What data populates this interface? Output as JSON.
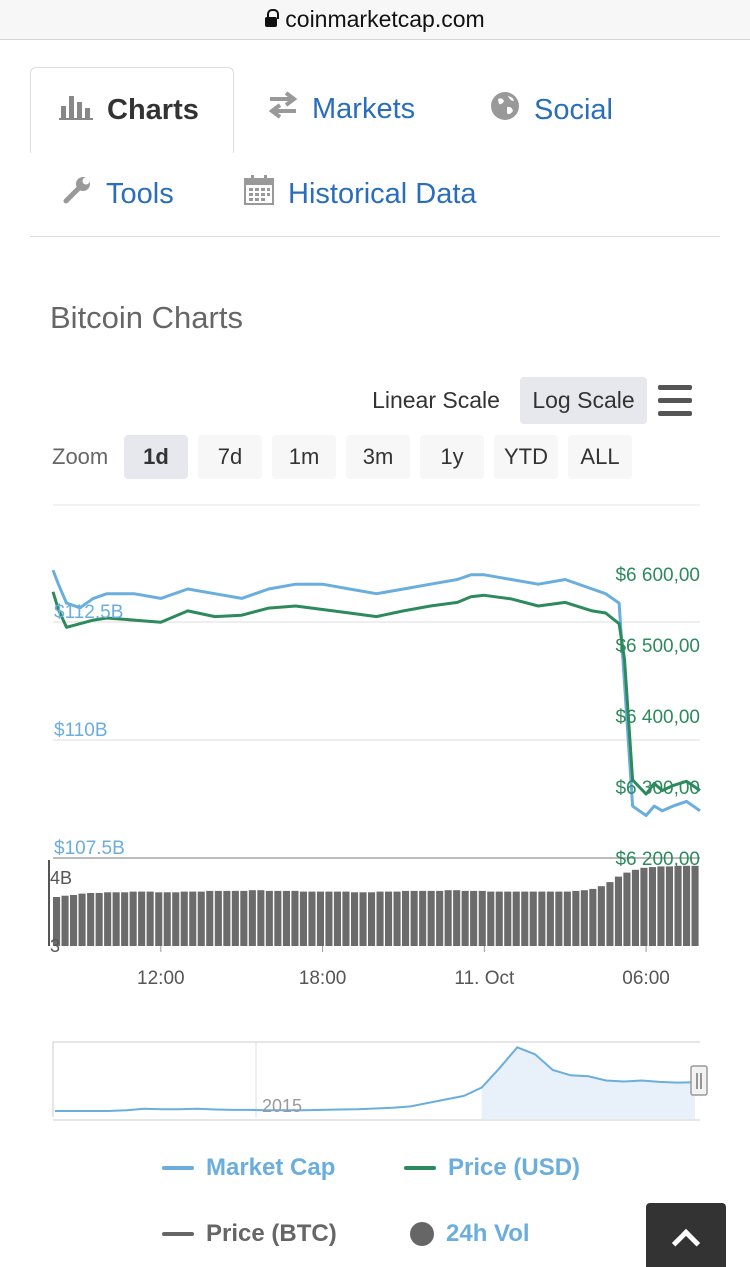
{
  "browser": {
    "url": "coinmarketcap.com"
  },
  "tabs": {
    "charts": "Charts",
    "markets": "Markets",
    "social": "Social",
    "tools": "Tools",
    "historical": "Historical Data"
  },
  "section_title": "Bitcoin Charts",
  "scale": {
    "linear": "Linear Scale",
    "log": "Log Scale",
    "selected": "Log Scale"
  },
  "zoom": {
    "label": "Zoom",
    "options": [
      "1d",
      "7d",
      "1m",
      "3m",
      "1y",
      "YTD",
      "ALL"
    ],
    "selected": "1d"
  },
  "chart_data": [
    {
      "type": "line",
      "colors": {
        "market_cap": "#6aaede",
        "price_usd": "#2d8a5c"
      },
      "y_left": {
        "ticks": [
          "$112.5B",
          "$110B",
          "$107.5B"
        ],
        "tick_values": [
          112.5,
          110,
          107.5
        ],
        "unit": "B USD"
      },
      "y_right": {
        "ticks": [
          "$6 600,00",
          "$6 500,00",
          "$6 400,00",
          "$6 300,00",
          "$6 200,00"
        ],
        "tick_values": [
          6600,
          6500,
          6400,
          6300,
          6200
        ]
      },
      "x_ticks": [
        "12:00",
        "18:00",
        "11. Oct",
        "06:00"
      ],
      "x_tick_hours": [
        12,
        18,
        24,
        30
      ],
      "x_range_hours": [
        8,
        32
      ],
      "series": [
        {
          "name": "Market Cap",
          "axis": "left",
          "x_hours": [
            8,
            8.2,
            8.5,
            9,
            9.5,
            10,
            11,
            12,
            13,
            14,
            15,
            16,
            17,
            18,
            19,
            20,
            21,
            22,
            23,
            23.5,
            24,
            25,
            26,
            27,
            28,
            28.5,
            29,
            29.2,
            29.5,
            30,
            30.3,
            30.6,
            31,
            31.5,
            32
          ],
          "values": [
            113.6,
            113.3,
            112.9,
            112.8,
            113.0,
            113.1,
            113.1,
            113.0,
            113.2,
            113.1,
            113.0,
            113.2,
            113.3,
            113.3,
            113.2,
            113.1,
            113.2,
            113.3,
            113.4,
            113.5,
            113.5,
            113.4,
            113.3,
            113.4,
            113.2,
            113.1,
            112.9,
            111.2,
            108.6,
            108.4,
            108.6,
            108.5,
            108.6,
            108.7,
            108.5
          ]
        },
        {
          "name": "Price (USD)",
          "axis": "right",
          "x_hours": [
            8,
            8.2,
            8.5,
            9,
            9.5,
            10,
            11,
            12,
            13,
            14,
            15,
            16,
            17,
            18,
            19,
            20,
            21,
            22,
            23,
            23.5,
            24,
            25,
            26,
            27,
            28,
            28.5,
            29,
            29.2,
            29.5,
            30,
            30.3,
            30.6,
            31,
            31.5,
            32
          ],
          "values": [
            6575,
            6550,
            6525,
            6530,
            6535,
            6538,
            6535,
            6532,
            6548,
            6540,
            6542,
            6552,
            6555,
            6550,
            6545,
            6540,
            6548,
            6555,
            6560,
            6568,
            6570,
            6565,
            6555,
            6560,
            6548,
            6545,
            6530,
            6480,
            6310,
            6290,
            6305,
            6295,
            6302,
            6308,
            6295
          ]
        }
      ]
    },
    {
      "type": "bar",
      "series": [
        {
          "name": "24h Vol"
        }
      ],
      "y_ticks": [
        "4B",
        "3"
      ],
      "y_tick_values": [
        4,
        3
      ],
      "unit": "B USD",
      "values": [
        3.72,
        3.74,
        3.75,
        3.77,
        3.78,
        3.78,
        3.79,
        3.79,
        3.79,
        3.8,
        3.8,
        3.8,
        3.79,
        3.79,
        3.79,
        3.8,
        3.8,
        3.8,
        3.81,
        3.81,
        3.81,
        3.81,
        3.81,
        3.82,
        3.82,
        3.81,
        3.81,
        3.81,
        3.81,
        3.8,
        3.8,
        3.8,
        3.8,
        3.8,
        3.8,
        3.79,
        3.79,
        3.79,
        3.8,
        3.8,
        3.8,
        3.81,
        3.81,
        3.81,
        3.81,
        3.81,
        3.82,
        3.82,
        3.81,
        3.81,
        3.81,
        3.8,
        3.8,
        3.8,
        3.8,
        3.8,
        3.8,
        3.8,
        3.8,
        3.8,
        3.8,
        3.81,
        3.82,
        3.84,
        3.88,
        3.94,
        4.02,
        4.08,
        4.12,
        4.15,
        4.16,
        4.17,
        4.17,
        4.18,
        4.18,
        4.18
      ]
    },
    {
      "type": "area",
      "role": "navigator",
      "x_label": "2015",
      "values": [
        0.3,
        0.3,
        0.3,
        0.3,
        0.5,
        0.9,
        0.8,
        0.8,
        0.9,
        0.7,
        0.6,
        0.6,
        0.5,
        0.5,
        0.5,
        0.6,
        0.7,
        0.8,
        1.0,
        1.2,
        1.6,
        2.6,
        3.6,
        4.6,
        7.0,
        12.5,
        18.5,
        16.5,
        12.0,
        10.5,
        10.2,
        9.0,
        8.7,
        9.0,
        8.6,
        8.4,
        8.5
      ],
      "y_max": 20
    }
  ],
  "legend": {
    "market_cap": "Market Cap",
    "price_usd": "Price (USD)",
    "price_btc": "Price (BTC)",
    "vol": "24h Vol",
    "colors": {
      "market_cap": "#6aaede",
      "price_usd": "#2d8a5c",
      "price_btc": "#666666",
      "vol": "#666666"
    }
  }
}
